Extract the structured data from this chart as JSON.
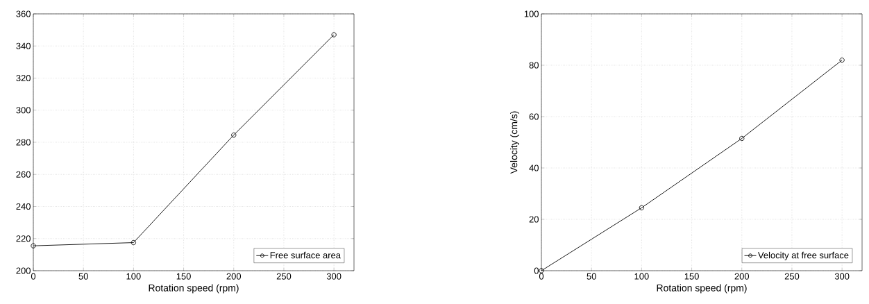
{
  "chart_data": [
    {
      "type": "line",
      "xlabel": "Rotation speed (rpm)",
      "x": [
        0,
        100,
        200,
        300
      ],
      "series": [
        {
          "name": "Free surface area",
          "color": "#000000",
          "values": [
            215.5,
            217.5,
            284.5,
            347
          ]
        }
      ],
      "xlim": [
        0,
        320
      ],
      "ylim": [
        200,
        360
      ],
      "xticks": [
        0,
        50,
        100,
        150,
        200,
        250,
        300
      ],
      "yticks": [
        200,
        220,
        240,
        260,
        280,
        300,
        320,
        340,
        360
      ],
      "grid": true,
      "legend": "bottom right",
      "marker": "circle",
      "line_style": "solid"
    },
    {
      "type": "line",
      "xlabel": "Rotation speed (rpm)",
      "ylabel": "Velocity (cm/s)",
      "x": [
        0,
        100,
        200,
        300
      ],
      "series": [
        {
          "name": "Velocity at free surface",
          "color": "#000000",
          "values": [
            0,
            24.5,
            51.5,
            82
          ]
        }
      ],
      "xlim": [
        0,
        320
      ],
      "ylim": [
        0,
        100
      ],
      "xticks": [
        0,
        50,
        100,
        150,
        200,
        250,
        300
      ],
      "yticks": [
        0,
        20,
        40,
        60,
        80,
        100
      ],
      "grid": true,
      "legend": "bottom right",
      "marker": "circle",
      "line_style": "solid"
    }
  ]
}
